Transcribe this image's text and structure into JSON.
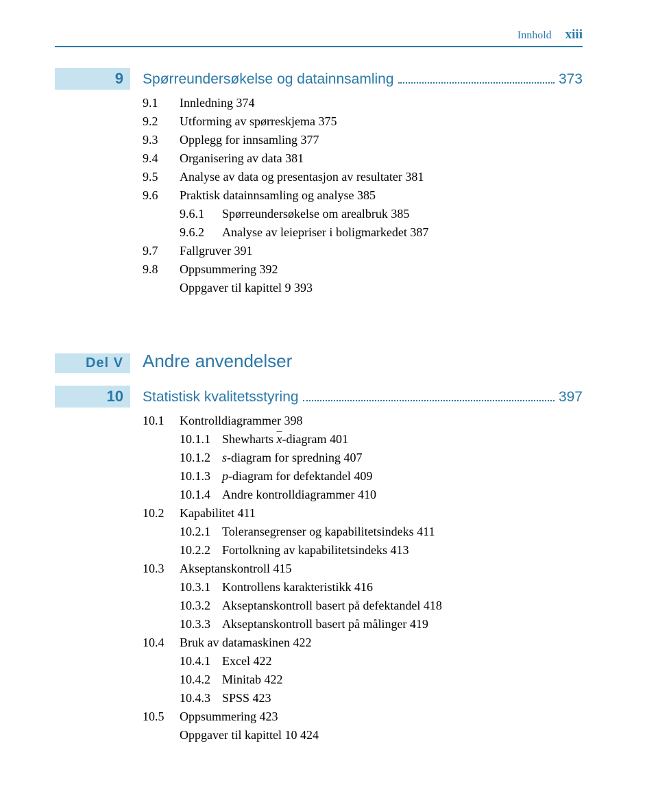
{
  "header": {
    "label": "Innhold",
    "page": "xiii"
  },
  "chapter9": {
    "num": "9",
    "title": "Spørreundersøkelse og datainnsamling",
    "page": "373",
    "items": [
      {
        "n": "9.1",
        "t": "Innledning   374"
      },
      {
        "n": "9.2",
        "t": "Utforming av spørreskjema   375"
      },
      {
        "n": "9.3",
        "t": "Opplegg for innsamling   377"
      },
      {
        "n": "9.4",
        "t": "Organisering av data   381"
      },
      {
        "n": "9.5",
        "t": "Analyse av data og presentasjon av resultater   381"
      },
      {
        "n": "9.6",
        "t": "Praktisk datainnsamling og analyse   385"
      },
      {
        "sub": true,
        "n": "9.6.1",
        "t": "Spørreundersøkelse om arealbruk   385"
      },
      {
        "sub": true,
        "n": "9.6.2",
        "t": "Analyse av leiepriser i boligmarkedet   387"
      },
      {
        "n": "9.7",
        "t": "Fallgruver   391"
      },
      {
        "n": "9.8",
        "t": "Oppsummering   392"
      },
      {
        "n": "",
        "t": "Oppgaver til kapittel 9   393"
      }
    ]
  },
  "partV": {
    "label": "Del V",
    "title": "Andre anvendelser"
  },
  "chapter10": {
    "num": "10",
    "title": "Statistisk kvalitetsstyring",
    "page": "397",
    "items": [
      {
        "n": "10.1",
        "t": "Kontrolldiagrammer   398"
      },
      {
        "sub": true,
        "n": "10.1.1",
        "t_html": "Shewharts <span class=\"xbar\">x</span>-diagram   401"
      },
      {
        "sub": true,
        "n": "10.1.2",
        "t_html": "<span class=\"italic\">s</span>-diagram for spredning   407"
      },
      {
        "sub": true,
        "n": "10.1.3",
        "t_html": "<span class=\"italic\">p</span>-diagram for defektandel   409"
      },
      {
        "sub": true,
        "n": "10.1.4",
        "t": "Andre kontrolldiagrammer   410"
      },
      {
        "n": "10.2",
        "t": "Kapabilitet   411"
      },
      {
        "sub": true,
        "n": "10.2.1",
        "t": "Toleransegrenser og kapabilitetsindeks   411"
      },
      {
        "sub": true,
        "n": "10.2.2",
        "t": "Fortolkning av kapabilitetsindeks   413"
      },
      {
        "n": "10.3",
        "t": "Akseptanskontroll   415"
      },
      {
        "sub": true,
        "n": "10.3.1",
        "t": "Kontrollens karakteristikk   416"
      },
      {
        "sub": true,
        "n": "10.3.2",
        "t": "Akseptanskontroll basert på defektandel   418"
      },
      {
        "sub": true,
        "n": "10.3.3",
        "t": "Akseptanskontroll basert på målinger   419"
      },
      {
        "n": "10.4",
        "t": "Bruk av datamaskinen   422"
      },
      {
        "sub": true,
        "n": "10.4.1",
        "t": "Excel   422"
      },
      {
        "sub": true,
        "n": "10.4.2",
        "t": "Minitab   422"
      },
      {
        "sub": true,
        "n": "10.4.3",
        "t": "SPSS   423"
      },
      {
        "n": "10.5",
        "t": "Oppsummering   423"
      },
      {
        "n": "",
        "t": "Oppgaver til kapittel 10   424"
      }
    ]
  }
}
